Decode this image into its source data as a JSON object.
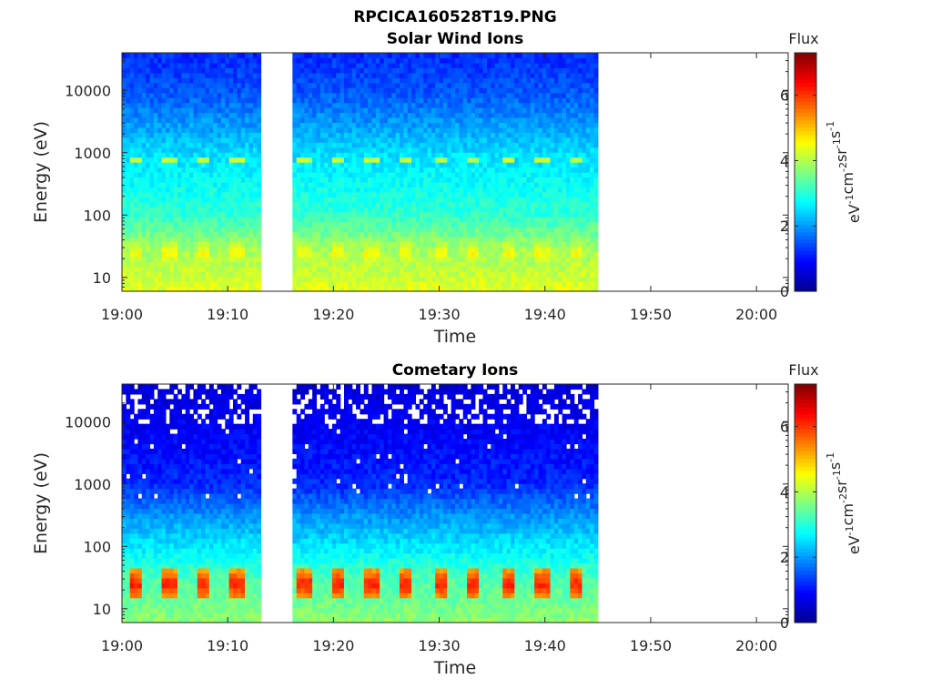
{
  "figure_title": "RPCICA160528T19.PNG",
  "colormap": [
    "#00008f",
    "#0000ff",
    "#0080ff",
    "#00ffff",
    "#80ff80",
    "#ffff00",
    "#ff8000",
    "#ff0000",
    "#800000"
  ],
  "chart_data": [
    {
      "type": "heatmap",
      "title": "Solar Wind Ions",
      "xlabel": "Time",
      "ylabel": "Energy (eV)",
      "xlim": [
        "19:00",
        "20:03"
      ],
      "x_ticks": [
        "19:00",
        "19:10",
        "19:20",
        "19:30",
        "19:40",
        "19:50",
        "20:00"
      ],
      "y_scale": "log",
      "ylim": [
        6,
        40000
      ],
      "y_ticks": [
        10,
        100,
        1000,
        10000
      ],
      "y_tick_labels": [
        "10",
        "100",
        "1000",
        "10000"
      ],
      "data_gap": [
        "19:13",
        "19:16"
      ],
      "data_end": "19:45",
      "colorbar": {
        "label": "eV-1 cm-2 sr-1 s-1",
        "title": "Flux",
        "range": [
          0,
          7.3
        ],
        "ticks": [
          0,
          2,
          4,
          6
        ]
      },
      "features": [
        {
          "energy": 800,
          "level": 4.2,
          "period_min": 3.2,
          "desc": "intermittent band"
        },
        {
          "energy": 25,
          "level": 4.6,
          "period_min": 3.2,
          "desc": "periodic low-energy blobs"
        }
      ],
      "profile": {
        "energy": [
          6,
          10,
          30,
          100,
          300,
          1000,
          3000,
          10000,
          40000
        ],
        "flux": [
          4.4,
          4.2,
          3.9,
          3.1,
          2.8,
          2.5,
          2.0,
          1.5,
          1.2
        ]
      }
    },
    {
      "type": "heatmap",
      "title": "Cometary Ions",
      "xlabel": "Time",
      "ylabel": "Energy (eV)",
      "xlim": [
        "19:00",
        "20:03"
      ],
      "x_ticks": [
        "19:00",
        "19:10",
        "19:20",
        "19:30",
        "19:40",
        "19:50",
        "20:00"
      ],
      "y_scale": "log",
      "ylim": [
        6,
        40000
      ],
      "y_ticks": [
        10,
        100,
        1000,
        10000
      ],
      "y_tick_labels": [
        "10",
        "100",
        "1000",
        "10000"
      ],
      "data_gap": [
        "19:13",
        "19:16"
      ],
      "data_end": "19:45",
      "colorbar": {
        "label": "eV-1 cm-2 sr-1 s-1",
        "title": "Flux",
        "range": [
          0,
          7.3
        ],
        "ticks": [
          0,
          2,
          4,
          6
        ]
      },
      "features": [
        {
          "energy": 25,
          "level": 6.2,
          "period_min": 3.2,
          "desc": "periodic low-energy peaks"
        }
      ],
      "profile": {
        "energy": [
          6,
          10,
          30,
          100,
          300,
          1000,
          3000,
          10000,
          40000
        ],
        "flux": [
          3.8,
          3.6,
          3.3,
          2.6,
          2.0,
          1.2,
          1.0,
          0.8,
          0.6
        ]
      }
    }
  ]
}
